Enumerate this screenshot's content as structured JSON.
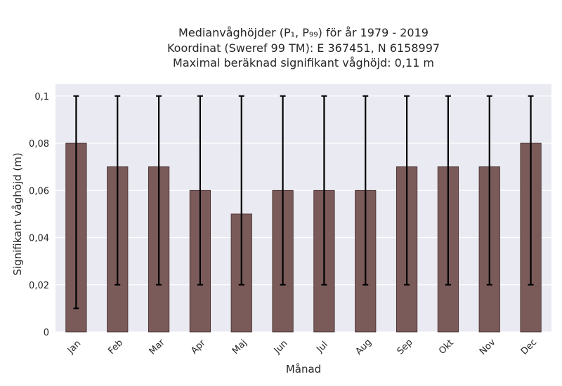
{
  "chart_data": {
    "type": "bar",
    "title_lines": [
      "Medianvåghöjder (P₁, P₉₉) för år 1979 - 2019",
      "Koordinat (Sweref 99 TM): E 367451, N 6158997",
      "Maximal beräknad signifikant våghöjd: 0,11 m"
    ],
    "xlabel": "Månad",
    "ylabel": "Signifikant våghöjd (m)",
    "categories": [
      "Jan",
      "Feb",
      "Mar",
      "Apr",
      "Maj",
      "Jun",
      "Jul",
      "Aug",
      "Sep",
      "Okt",
      "Nov",
      "Dec"
    ],
    "values": [
      0.08,
      0.07,
      0.07,
      0.06,
      0.05,
      0.06,
      0.06,
      0.06,
      0.07,
      0.07,
      0.07,
      0.08
    ],
    "error_low": [
      0.01,
      0.02,
      0.02,
      0.02,
      0.02,
      0.02,
      0.02,
      0.02,
      0.02,
      0.02,
      0.02,
      0.02
    ],
    "error_high": [
      0.1,
      0.1,
      0.1,
      0.1,
      0.1,
      0.1,
      0.1,
      0.1,
      0.1,
      0.1,
      0.1,
      0.1
    ],
    "yticks": [
      0,
      0.02,
      0.04,
      0.06,
      0.08,
      0.1
    ],
    "ytick_labels": [
      "0",
      "0,02",
      "0,04",
      "0,06",
      "0,08",
      "0,1"
    ],
    "ylim": [
      0,
      0.105
    ],
    "grid": true,
    "colors": {
      "bar": "#7b5a5a",
      "bar_edge": "#3f2a2a",
      "plot_bg": "#eaeaf2",
      "grid": "#ffffff",
      "error": "#000000"
    }
  }
}
